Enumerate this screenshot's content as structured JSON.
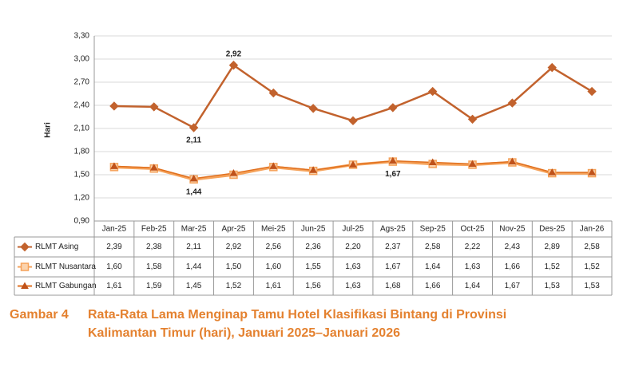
{
  "chart_data": {
    "type": "line",
    "y_label": "Hari",
    "figure_label": "Gambar 4",
    "title_lines": [
      "Rata-Rata Lama Menginap Tamu Hotel Klasifikasi Bintang di Provinsi",
      "Kalimantan Timur (hari), Januari 2025–Januari 2026"
    ],
    "categories": [
      "Jan-25",
      "Feb-25",
      "Mar-25",
      "Apr-25",
      "Mei-25",
      "Jun-25",
      "Jul-25",
      "Ags-25",
      "Sep-25",
      "Oct-25",
      "Nov-25",
      "Des-25",
      "Jan-26"
    ],
    "series": [
      {
        "name": "RLMT Asing",
        "color": "#c2622d",
        "marker": "diamond",
        "values": [
          2.39,
          2.38,
          2.11,
          2.92,
          2.56,
          2.36,
          2.2,
          2.37,
          2.58,
          2.22,
          2.43,
          2.89,
          2.58
        ],
        "value_labels": [
          "2,39",
          "2,38",
          "2,11",
          "2,92",
          "2,56",
          "2,36",
          "2,20",
          "2,37",
          "2,58",
          "2,22",
          "2,43",
          "2,89",
          "2,58"
        ]
      },
      {
        "name": "RLMT Nusantara",
        "color": "#f5a25a",
        "marker": "square",
        "values": [
          1.6,
          1.58,
          1.44,
          1.5,
          1.6,
          1.55,
          1.63,
          1.67,
          1.64,
          1.63,
          1.66,
          1.52,
          1.52
        ],
        "value_labels": [
          "1,60",
          "1,58",
          "1,44",
          "1,50",
          "1,60",
          "1,55",
          "1,63",
          "1,67",
          "1,64",
          "1,63",
          "1,66",
          "1,52",
          "1,52"
        ]
      },
      {
        "name": "RLMT Gabungan",
        "color": "#e0701f",
        "marker": "triangle",
        "values": [
          1.61,
          1.59,
          1.45,
          1.52,
          1.61,
          1.56,
          1.63,
          1.68,
          1.66,
          1.64,
          1.67,
          1.53,
          1.53
        ],
        "value_labels": [
          "1,61",
          "1,59",
          "1,45",
          "1,52",
          "1,61",
          "1,56",
          "1,63",
          "1,68",
          "1,66",
          "1,64",
          "1,67",
          "1,53",
          "1,53"
        ]
      }
    ],
    "ylim": [
      0.9,
      3.3
    ],
    "yticks": [
      {
        "value": 0.9,
        "label": "0,90"
      },
      {
        "value": 1.2,
        "label": "1,20"
      },
      {
        "value": 1.5,
        "label": "1,50"
      },
      {
        "value": 1.8,
        "label": "1,80"
      },
      {
        "value": 2.1,
        "label": "2,10"
      },
      {
        "value": 2.4,
        "label": "2,40"
      },
      {
        "value": 2.7,
        "label": "2,70"
      },
      {
        "value": 3.0,
        "label": "3,00"
      },
      {
        "value": 3.3,
        "label": "3,30"
      }
    ],
    "grid": true
  }
}
